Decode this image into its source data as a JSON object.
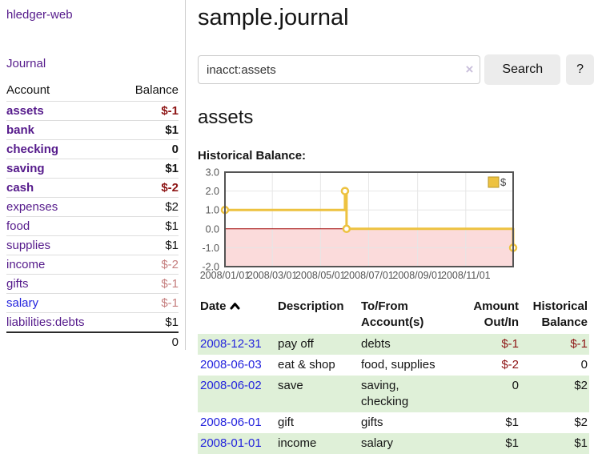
{
  "app": {
    "brand": "hledger-web"
  },
  "colors": {
    "link_purple": "#551a8b",
    "link_blue": "#2323dd",
    "negative_strong": "#8d1414",
    "negative_muted": "#c57e7e",
    "stripe_green": "#dff0d8",
    "text_dark": "#141414"
  },
  "sidebar": {
    "journal_link": "Journal",
    "table": {
      "account_header": "Account",
      "balance_header": "Balance",
      "accounts": [
        {
          "name": "assets",
          "balance": "$-1",
          "depth": 0,
          "emphasis": true,
          "link_color": "purple",
          "balance_tone": "negative"
        },
        {
          "name": "bank",
          "balance": "$1",
          "depth": 1,
          "emphasis": true,
          "link_color": "purple",
          "balance_tone": "neutral"
        },
        {
          "name": "checking",
          "balance": "0",
          "depth": 2,
          "emphasis": true,
          "link_color": "purple",
          "balance_tone": "neutral"
        },
        {
          "name": "saving",
          "balance": "$1",
          "depth": 2,
          "emphasis": true,
          "link_color": "purple",
          "balance_tone": "neutral"
        },
        {
          "name": "cash",
          "balance": "$-2",
          "depth": 1,
          "emphasis": true,
          "link_color": "purple",
          "balance_tone": "negative"
        },
        {
          "name": "expenses",
          "balance": "$2",
          "depth": 0,
          "emphasis": false,
          "link_color": "purple",
          "balance_tone": "neutral"
        },
        {
          "name": "food",
          "balance": "$1",
          "depth": 1,
          "emphasis": false,
          "link_color": "purple",
          "balance_tone": "neutral"
        },
        {
          "name": "supplies",
          "balance": "$1",
          "depth": 1,
          "emphasis": false,
          "link_color": "purple",
          "balance_tone": "neutral"
        },
        {
          "name": "income",
          "balance": "$-2",
          "depth": 0,
          "emphasis": false,
          "link_color": "purple",
          "balance_tone": "negative-muted"
        },
        {
          "name": "gifts",
          "balance": "$-1",
          "depth": 1,
          "emphasis": false,
          "link_color": "purple",
          "balance_tone": "negative-muted"
        },
        {
          "name": "salary",
          "balance": "$-1",
          "depth": 1,
          "emphasis": false,
          "link_color": "blue",
          "balance_tone": "negative-muted"
        },
        {
          "name": "liabilities:debts",
          "balance": "$1",
          "depth": 0,
          "emphasis": false,
          "link_color": "purple",
          "balance_tone": "neutral"
        }
      ],
      "total": "0"
    }
  },
  "header": {
    "title": "sample.journal"
  },
  "search": {
    "query": "inacct:assets",
    "clear_icon": "×",
    "button": "Search",
    "help_button": "?"
  },
  "account_page": {
    "title": "assets",
    "chart_label": "Historical Balance:"
  },
  "chart_data": {
    "type": "line",
    "title": "Historical Balance:",
    "step": true,
    "series": [
      {
        "name": "$",
        "points": [
          [
            "2008-01-01",
            1
          ],
          [
            "2008-06-01",
            2
          ],
          [
            "2008-06-03",
            0
          ],
          [
            "2008-12-31",
            -1
          ]
        ]
      }
    ],
    "xlim": [
      "2008-01-01",
      "2008-12-31"
    ],
    "ylim": [
      -2,
      3
    ],
    "yticks": [
      3.0,
      2.0,
      1.0,
      0.0,
      -1.0,
      -2.0
    ],
    "xticks": [
      {
        "label": "2008/01/01",
        "date": "2008-01-01"
      },
      {
        "label": "2008/03/01",
        "date": "2008-03-01"
      },
      {
        "label": "2008/05/01",
        "date": "2008-05-01"
      },
      {
        "label": "2008/07/01",
        "date": "2008-07-01"
      },
      {
        "label": "2008/09/01",
        "date": "2008-09-01"
      },
      {
        "label": "2008/11/01",
        "date": "2008-11-01"
      }
    ],
    "legend": {
      "label": "$",
      "position": "top-right"
    },
    "colors": {
      "line": "#edc240",
      "marker_fill": "#ffffff",
      "zero_line": "#a00000",
      "negative_region": "#fbdbdb",
      "grid": "#e6e6e6",
      "border": "#545454",
      "tick_text": "#545454",
      "legend_box_border": "#b99729",
      "legend_text": "#444444"
    }
  },
  "register": {
    "headers": {
      "date": "Date",
      "description": "Description",
      "accounts": "To/From Account(s)",
      "amount": "Amount Out/In",
      "balance": "Historical Balance"
    },
    "rows": [
      {
        "date": "2008-12-31",
        "description": "pay off",
        "accounts": "debts",
        "amount": "$-1",
        "amount_negative": true,
        "balance": "$-1",
        "balance_negative": true
      },
      {
        "date": "2008-06-03",
        "description": "eat & shop",
        "accounts": "food, supplies",
        "amount": "$-2",
        "amount_negative": true,
        "balance": "0",
        "balance_negative": false
      },
      {
        "date": "2008-06-02",
        "description": "save",
        "accounts": "saving, checking",
        "amount": "0",
        "amount_negative": false,
        "balance": "$2",
        "balance_negative": false
      },
      {
        "date": "2008-06-01",
        "description": "gift",
        "accounts": "gifts",
        "amount": "$1",
        "amount_negative": false,
        "balance": "$2",
        "balance_negative": false
      },
      {
        "date": "2008-01-01",
        "description": "income",
        "accounts": "salary",
        "amount": "$1",
        "amount_negative": false,
        "balance": "$1",
        "balance_negative": false
      }
    ]
  }
}
